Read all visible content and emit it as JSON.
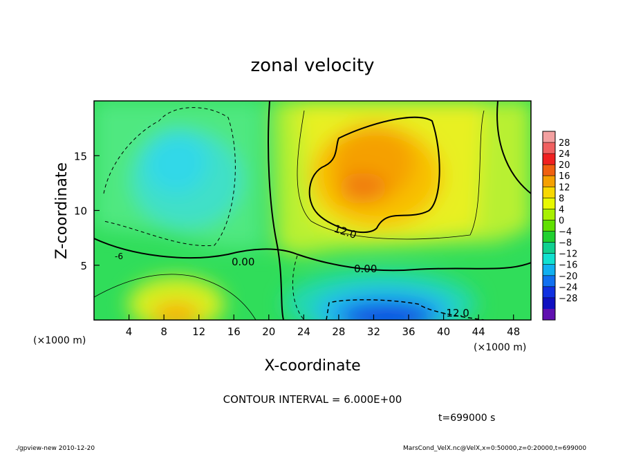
{
  "chart_data": {
    "type": "heatmap",
    "title": "zonal velocity",
    "xlabel": "X-coordinate",
    "ylabel": "Z-coordinate",
    "x_unit_note": "(×1000 m)",
    "y_unit_note": "(×1000 m)",
    "xlim": [
      0,
      50
    ],
    "ylim": [
      0,
      20
    ],
    "x_ticks": [
      4,
      8,
      12,
      16,
      20,
      24,
      28,
      32,
      36,
      40,
      44,
      48
    ],
    "y_ticks": [
      5,
      10,
      15
    ],
    "colorbar": {
      "labels": [
        28,
        24,
        20,
        16,
        12,
        8,
        4,
        0,
        -4,
        -8,
        -12,
        -16,
        -20,
        -24,
        -28
      ],
      "colors": [
        "#f3a0a0",
        "#f06060",
        "#f02020",
        "#f06010",
        "#f5a000",
        "#f8d800",
        "#e8f800",
        "#a8f000",
        "#60e000",
        "#20d030",
        "#10d090",
        "#10e0d0",
        "#10b0f0",
        "#1070f0",
        "#1030e0",
        "#1010c0",
        "#6010b0"
      ]
    },
    "contour_labels": [
      "0.00",
      "0.00",
      "12.0",
      "-12.0",
      "-6"
    ],
    "contour_interval_text": "CONTOUR INTERVAL = 6.000E+00",
    "time_text": "t=699000 s",
    "regions": [
      {
        "name": "positive maximum",
        "x": 32,
        "z": 12,
        "value": 18
      },
      {
        "name": "negative minimum",
        "x": 33,
        "z": 0.5,
        "value": -22
      },
      {
        "name": "low-level positive",
        "x": 10,
        "z": 1,
        "value": 12
      },
      {
        "name": "upper negative",
        "x": 10,
        "z": 15,
        "value": -8
      }
    ]
  },
  "footer": {
    "left": "./gpview-new  2010-12-20",
    "right": "MarsCond_VelX.nc@VelX,x=0:50000,z=0:20000,t=699000"
  }
}
